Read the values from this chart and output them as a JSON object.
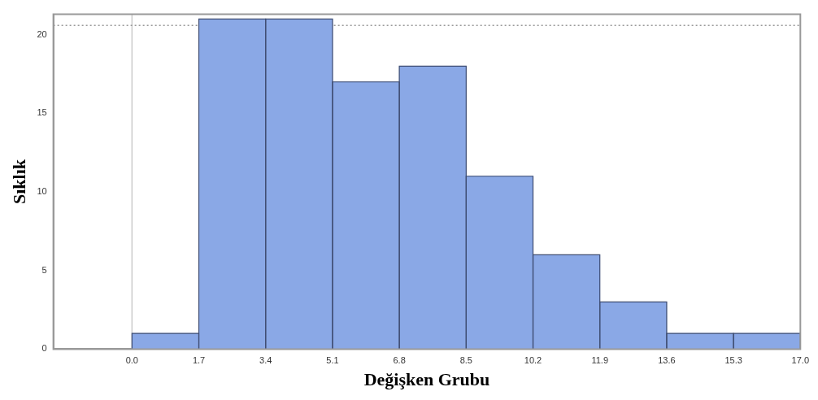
{
  "chart_data": {
    "type": "histogram",
    "xlabel": "Değişken Grubu",
    "ylabel": "Sıklık",
    "bins": [
      0,
      1.7,
      3.4,
      5.1,
      6.8,
      8.5,
      10.2,
      11.9,
      13.6,
      15.3,
      17
    ],
    "values": [
      1,
      21,
      21,
      17,
      18,
      11,
      6,
      3,
      1,
      1
    ],
    "color": "#8aa8e6",
    "xlim": [
      -2,
      17
    ],
    "xticks": [
      {
        "value": 0,
        "label": "0.0"
      },
      1.7,
      3.4,
      5.1,
      6.8,
      8.5,
      10.2,
      11.9,
      13.6,
      15.3,
      {
        "value": 17,
        "label": "17.0"
      }
    ],
    "ylim": [
      0,
      21.3
    ],
    "yticks": [
      0,
      5,
      10,
      15,
      20
    ],
    "ref_lines": [
      {
        "axis": "x",
        "value": 0,
        "color": "#cccccc",
        "line_style": "solid"
      },
      {
        "axis": "y",
        "value": 20.6,
        "color": "#999999",
        "line_style": "dotted"
      }
    ],
    "grid": false,
    "legend": false
  }
}
